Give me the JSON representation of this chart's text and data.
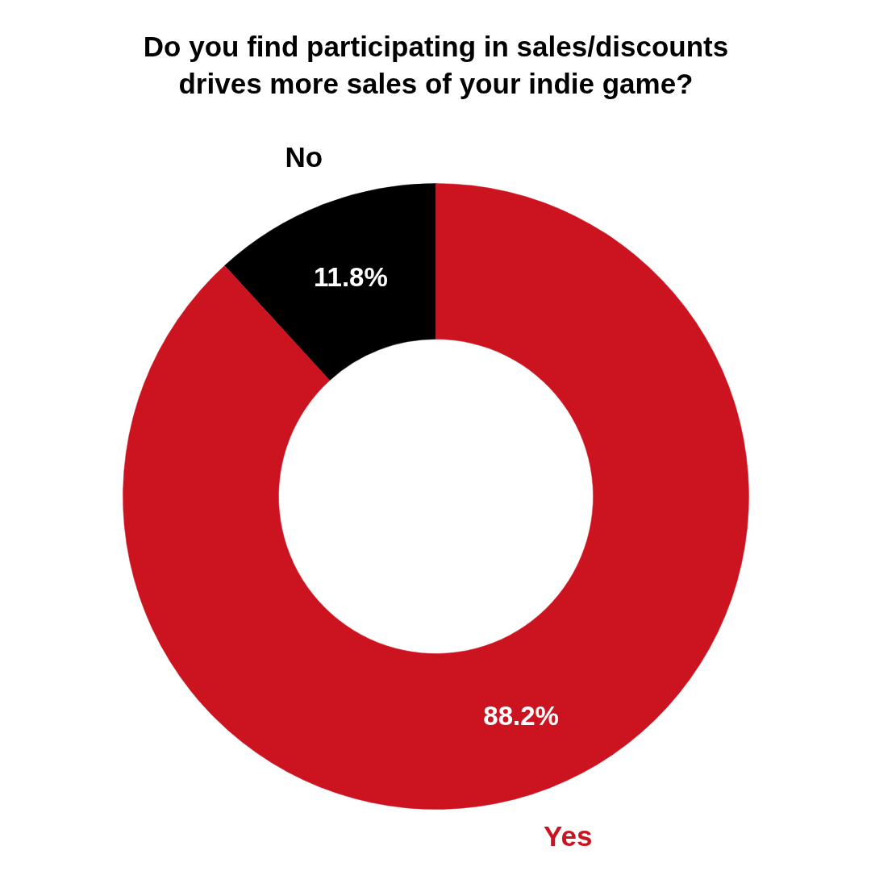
{
  "chart_data": {
    "type": "donut",
    "title": "Do you find participating in sales/discounts drives more sales of your indie game?",
    "categories": [
      "No",
      "Yes"
    ],
    "values": [
      11.8,
      88.2
    ],
    "colors": [
      "#000000",
      "#cc1421"
    ],
    "value_labels": [
      "11.8%",
      "88.2%"
    ]
  }
}
